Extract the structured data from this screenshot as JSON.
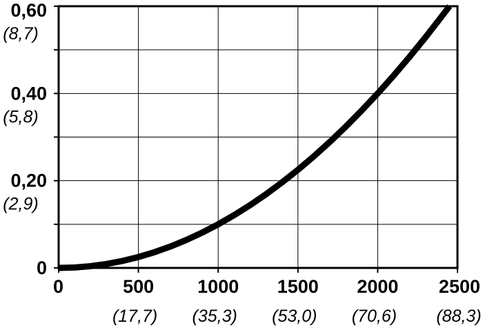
{
  "chart_data": {
    "type": "line",
    "title": "",
    "xlabel": "",
    "ylabel": "",
    "xlim": [
      0,
      2500
    ],
    "ylim": [
      0,
      0.6
    ],
    "grid": true,
    "legend": "none",
    "x_ticks": [
      {
        "value": 0,
        "label": "0",
        "sublabel": ""
      },
      {
        "value": 500,
        "label": "500",
        "sublabel": "(17,7)"
      },
      {
        "value": 1000,
        "label": "1000",
        "sublabel": "(35,3)"
      },
      {
        "value": 1500,
        "label": "1500",
        "sublabel": "(53,0)"
      },
      {
        "value": 2000,
        "label": "2000",
        "sublabel": "(70,6)"
      },
      {
        "value": 2500,
        "label": "2500",
        "sublabel": "(88,3)"
      }
    ],
    "y_ticks": [
      {
        "value": 0,
        "label": "0",
        "sublabel": ""
      },
      {
        "value": 0.2,
        "label": "0,20",
        "sublabel": "(2,9)"
      },
      {
        "value": 0.4,
        "label": "0,40",
        "sublabel": "(5,8)"
      },
      {
        "value": 0.6,
        "label": "0,60",
        "sublabel": "(8,7)"
      }
    ],
    "series": [
      {
        "color": "#000000",
        "x": [
          0,
          100,
          200,
          300,
          400,
          500,
          600,
          700,
          800,
          900,
          1000,
          1100,
          1200,
          1300,
          1400,
          1500,
          1600,
          1700,
          1800,
          1900,
          2000,
          2100,
          2200,
          2300,
          2400,
          2450
        ],
        "y": [
          0,
          0.001,
          0.004,
          0.009,
          0.016,
          0.025,
          0.036,
          0.049,
          0.064,
          0.081,
          0.1,
          0.121,
          0.144,
          0.169,
          0.196,
          0.225,
          0.256,
          0.289,
          0.324,
          0.361,
          0.4,
          0.441,
          0.484,
          0.529,
          0.576,
          0.6
        ]
      }
    ]
  }
}
